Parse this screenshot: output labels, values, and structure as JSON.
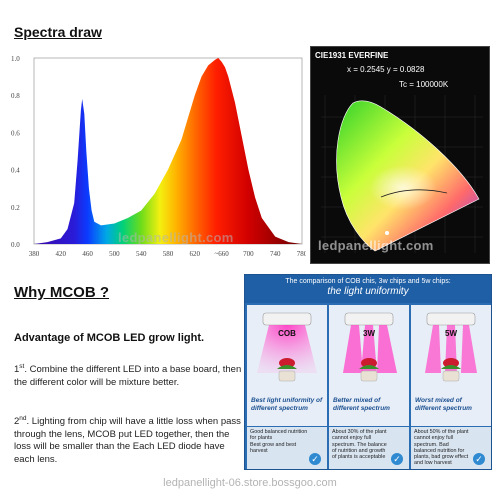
{
  "sections": {
    "spectra_title": "Spectra draw",
    "mcob_title": "Why MCOB ?"
  },
  "chart_data": {
    "type": "line",
    "title": "",
    "xlabel": "",
    "ylabel": "",
    "x_ticks": [
      "380",
      "420",
      "460",
      "500",
      "540",
      "580",
      "620",
      "~660",
      "700",
      "740",
      "780"
    ],
    "y_ticks": [
      "0.0",
      "0.2",
      "0.4",
      "0.6",
      "0.8",
      "1.0"
    ],
    "xlim": [
      380,
      780
    ],
    "ylim": [
      0,
      1.0
    ],
    "grid": false,
    "series": [
      {
        "x": [
          380,
          400,
          420,
          430,
          440,
          445,
          450,
          452,
          455,
          458,
          462,
          466,
          470,
          480,
          500,
          520,
          540,
          560,
          580,
          600,
          610,
          620,
          630,
          640,
          650,
          655,
          660,
          665,
          670,
          680,
          690,
          700,
          710,
          720,
          740,
          760,
          780
        ],
        "y": [
          0.0,
          0.01,
          0.03,
          0.08,
          0.22,
          0.45,
          0.72,
          0.78,
          0.7,
          0.5,
          0.3,
          0.18,
          0.12,
          0.1,
          0.11,
          0.14,
          0.18,
          0.27,
          0.4,
          0.56,
          0.68,
          0.8,
          0.9,
          0.96,
          0.99,
          1.0,
          0.98,
          0.95,
          0.9,
          0.76,
          0.58,
          0.4,
          0.25,
          0.14,
          0.04,
          0.01,
          0.0
        ]
      }
    ]
  },
  "cie": {
    "header": "CIE1931 EVERFINE",
    "coords": "x = 0.2545  y = 0.0828",
    "tc": "Tc = 100000K"
  },
  "watermarks": {
    "spectrum": "ledpanellight.com",
    "cie": "ledpanellight.com",
    "footer": "ledpanellight-06.store.bossgoo.com"
  },
  "text": {
    "advantage": "Advantage of MCOB LED grow light.",
    "p1_num": "1",
    "p1_sup": "st",
    "p1_text": ". Combine the different LED into a base board, then the different color will be mixture better.",
    "p2_num": "2",
    "p2_sup": "nd",
    "p2_text": ". Lighting from chip will have a little loss when pass through the lens, MCOB put LED together,  then the loss will be smaller than the Each LED diode have each lens."
  },
  "comparison": {
    "header_line1": "The comparison of COB chis, 3w chips and 5w chips:",
    "header_line2": "the light uniformity",
    "columns": [
      {
        "label": "COB",
        "caption": "Best light uniformity of different spectrum"
      },
      {
        "label": "3W",
        "caption": "Better mixed of different spectrum"
      },
      {
        "label": "5W",
        "caption": "Worst mixed of different spectrum"
      }
    ],
    "cells": [
      {
        "text": "Good balanced nutrition for plants\nBest grow and best harvest",
        "mark": "✓"
      },
      {
        "text": "About 30% of the plant cannot enjoy full spectrum. The balance of nutrition and growth of plants is acceptable",
        "mark": "✓"
      },
      {
        "text": "About 50% of the plant cannot enjoy full spectrum. Bad balanced nutrition for plants, bad grow effect and low harvest",
        "mark": "✓"
      }
    ]
  },
  "colors": {
    "panel_blue": "#2a6db2",
    "caption_blue": "#1b4f91",
    "magenta_light": "#e03aa8"
  }
}
